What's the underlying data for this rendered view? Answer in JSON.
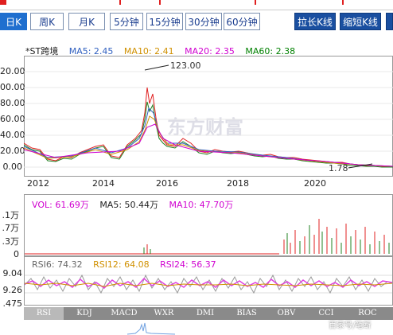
{
  "tabs": [
    "日K",
    "周K",
    "月K",
    "5分钟",
    "15分钟",
    "30分钟",
    "60分钟"
  ],
  "zoom": {
    "stretch": "拉长K线",
    "shrink": "缩短K线"
  },
  "legend": {
    "name": "*ST跨境",
    "ma5": "MA5: 2.45",
    "ma10": "MA10: 2.41",
    "ma20": "MA20: 2.35",
    "ma60": "MA60: 2.38"
  },
  "price_axis": [
    "20.00",
    "00.00",
    "80.00",
    "60.00",
    "40.00",
    "20.00",
    "0.00"
  ],
  "years": [
    "2012",
    "2014",
    "2016",
    "2018",
    "2020"
  ],
  "annotations": {
    "high": "123.00",
    "low": "1.78"
  },
  "watermark": "东方财富",
  "volume": {
    "vol": "VOL: 61.69万",
    "ma5": "MA5: 50.44万",
    "ma10": "MA10: 47.70万",
    "axis": [
      ".1万",
      ".7万",
      ".3万",
      "0"
    ]
  },
  "rsi": {
    "rsi6": "RSI6: 74.32",
    "rsi12": "RSI12: 64.08",
    "rsi24": "RSI24: 56.37",
    "axis": [
      "9.04",
      "9.26",
      ".475"
    ]
  },
  "indicators": [
    "RSI",
    "KDJ",
    "MACD",
    "WXR",
    "DMI",
    "BIAS",
    "OBV",
    "CCI",
    "ROC"
  ],
  "credit": "百家号/笔断",
  "colors": {
    "ma5": "#3060c0",
    "ma10": "#d09000",
    "ma20": "#d000d0",
    "ma60": "#008000",
    "up": "#e02020",
    "down": "#208020"
  }
}
